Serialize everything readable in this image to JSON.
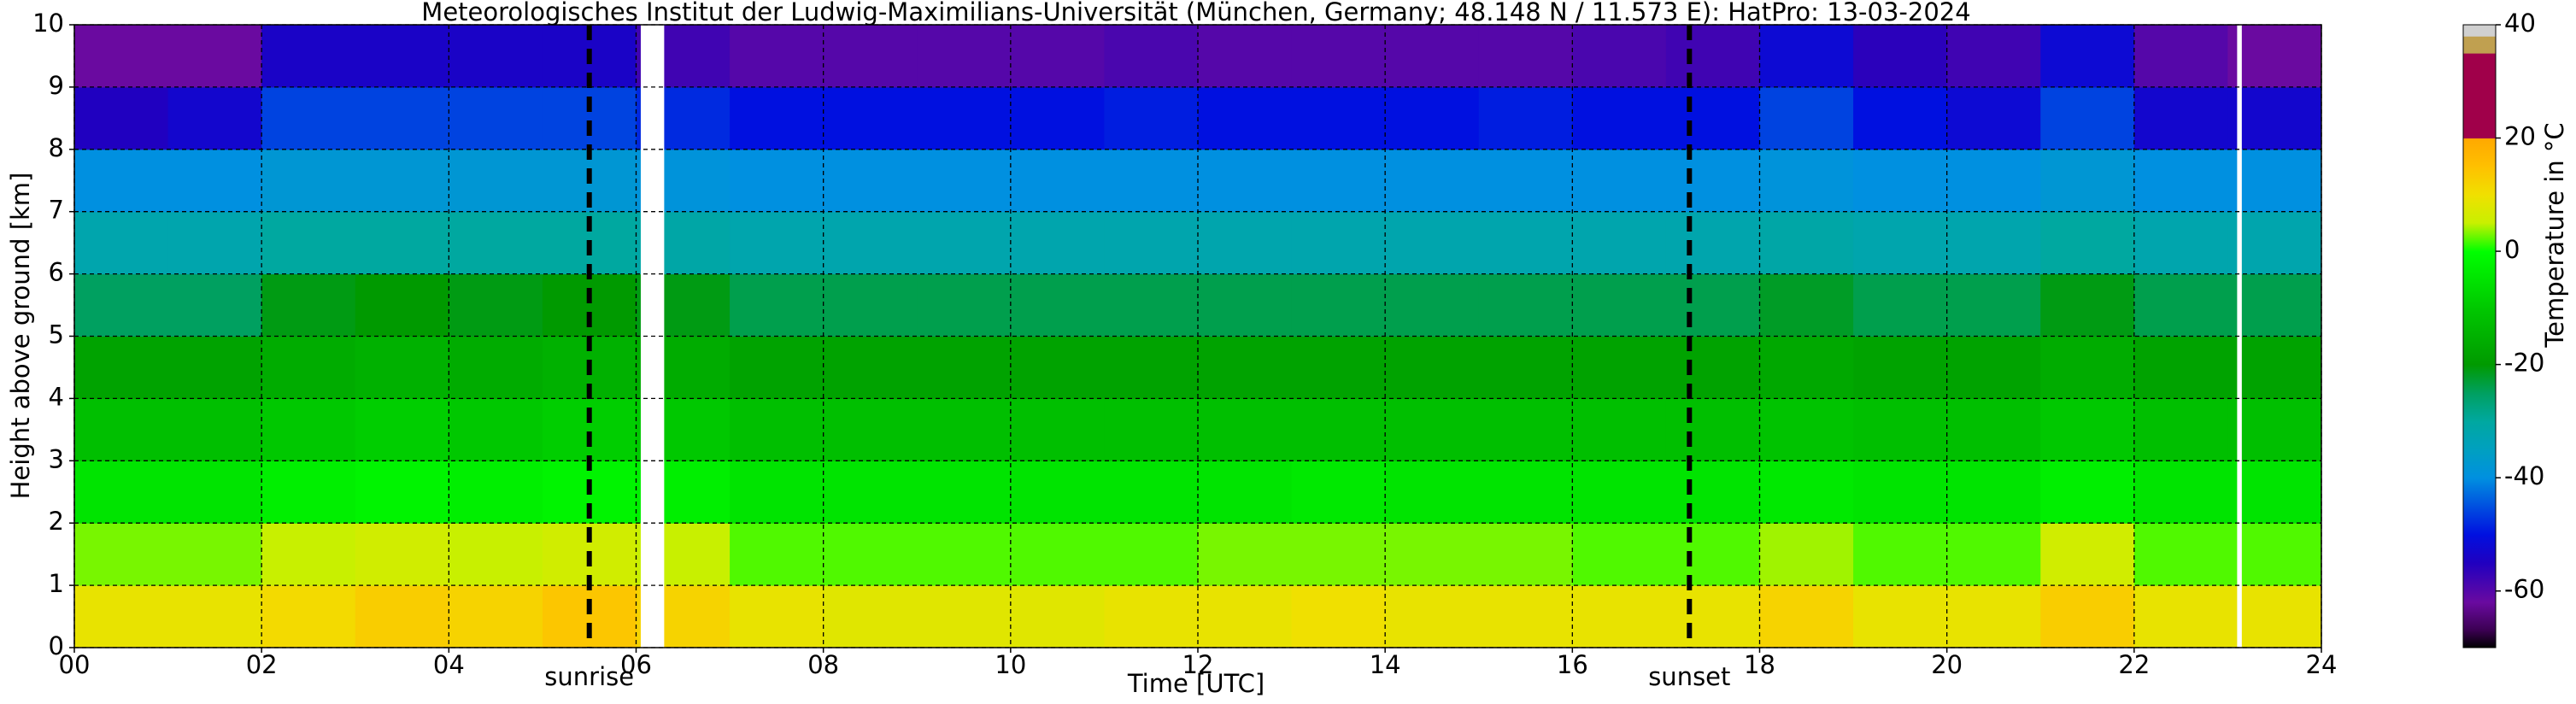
{
  "chart_data": {
    "type": "heatmap",
    "title": "Meteorologisches Institut der Ludwig-Maximilians-Universität (München, Germany; 48.148 N / 11.573 E):    HatPro: 13-03-2024",
    "x_label": "Time [UTC]",
    "y_label": "Height above ground [km]",
    "colorbar_label": "Temperature in °C",
    "x_bins": [
      0,
      1,
      2,
      3,
      4,
      5,
      6,
      7,
      8,
      9,
      10,
      11,
      12,
      13,
      14,
      15,
      16,
      17,
      18,
      19,
      20,
      21,
      22,
      23,
      24
    ],
    "y_bins": [
      0,
      1,
      2,
      3,
      4,
      5,
      6,
      7,
      8,
      9,
      10
    ],
    "values": [
      [
        9,
        9,
        11,
        13,
        12,
        14,
        12,
        9,
        8,
        8,
        8,
        9,
        9,
        10,
        9,
        9,
        9,
        9,
        12,
        9,
        9,
        13,
        9,
        9
      ],
      [
        3,
        3,
        5,
        6,
        5,
        6,
        5,
        2,
        2,
        2,
        2,
        2,
        3,
        3,
        3,
        3,
        2,
        2,
        4,
        2,
        2,
        6,
        2,
        2
      ],
      [
        -5,
        -5,
        -3,
        -2,
        -3,
        -2,
        -3,
        -5,
        -5,
        -5,
        -5,
        -5,
        -5,
        -4,
        -5,
        -5,
        -5,
        -5,
        -4,
        -5,
        -5,
        -3,
        -5,
        -5
      ],
      [
        -12,
        -12,
        -10,
        -9,
        -10,
        -9,
        -10,
        -12,
        -12,
        -12,
        -12,
        -12,
        -12,
        -12,
        -12,
        -12,
        -12,
        -12,
        -11,
        -12,
        -12,
        -10,
        -12,
        -12
      ],
      [
        -18,
        -18,
        -16,
        -15,
        -16,
        -15,
        -16,
        -18,
        -18,
        -18,
        -18,
        -18,
        -18,
        -18,
        -18,
        -18,
        -18,
        -18,
        -17,
        -18,
        -18,
        -16,
        -18,
        -18
      ],
      [
        -25,
        -25,
        -21,
        -20,
        -21,
        -20,
        -21,
        -24,
        -24,
        -24,
        -24,
        -24,
        -24,
        -24,
        -24,
        -24,
        -24,
        -24,
        -22,
        -24,
        -24,
        -21,
        -24,
        -24
      ],
      [
        -32,
        -32,
        -30,
        -30,
        -30,
        -30,
        -31,
        -32,
        -32,
        -32,
        -32,
        -32,
        -32,
        -32,
        -32,
        -32,
        -32,
        -32,
        -31,
        -32,
        -32,
        -30,
        -32,
        -32
      ],
      [
        -40,
        -40,
        -38,
        -38,
        -38,
        -38,
        -39,
        -40,
        -40,
        -40,
        -40,
        -40,
        -40,
        -40,
        -40,
        -40,
        -40,
        -40,
        -39,
        -40,
        -40,
        -38,
        -40,
        -40
      ],
      [
        -55,
        -53,
        -46,
        -46,
        -46,
        -46,
        -48,
        -50,
        -50,
        -50,
        -50,
        -49,
        -50,
        -50,
        -50,
        -49,
        -50,
        -50,
        -46,
        -50,
        -52,
        -46,
        -53,
        -53
      ],
      [
        -62,
        -62,
        -54,
        -54,
        -54,
        -54,
        -58,
        -60,
        -60,
        -60,
        -60,
        -59,
        -60,
        -60,
        -60,
        -60,
        -59,
        -58,
        -52,
        -56,
        -58,
        -52,
        -60,
        -62
      ]
    ],
    "missing": [
      [
        6.05,
        6.3
      ],
      [
        23.1,
        23.15
      ]
    ],
    "xlim": [
      0,
      24
    ],
    "ylim": [
      0,
      10
    ],
    "xticks": [
      {
        "value": 0,
        "label": "00"
      },
      {
        "value": 2,
        "label": "02"
      },
      {
        "value": 4,
        "label": "04"
      },
      {
        "value": 6,
        "label": "06"
      },
      {
        "value": 8,
        "label": "08"
      },
      10,
      12,
      14,
      16,
      18,
      20,
      22,
      24
    ],
    "yticks": [
      0,
      1,
      2,
      3,
      4,
      5,
      6,
      7,
      8,
      9,
      10
    ],
    "grid": true,
    "annotations": [
      {
        "text": "sunrise",
        "x": 5.5
      },
      {
        "text": "sunset",
        "x": 17.25
      }
    ],
    "colorscale": [
      {
        "value": -70,
        "color": "#000000"
      },
      {
        "value": -67,
        "color": "#3a0050"
      },
      {
        "value": -62,
        "color": "#6a0aa0"
      },
      {
        "value": -55,
        "color": "#2000c0"
      },
      {
        "value": -50,
        "color": "#0010e0"
      },
      {
        "value": -45,
        "color": "#0050e0"
      },
      {
        "value": -40,
        "color": "#0090e0"
      },
      {
        "value": -35,
        "color": "#00a0c0"
      },
      {
        "value": -30,
        "color": "#00a8a0"
      },
      {
        "value": -25,
        "color": "#00a060"
      },
      {
        "value": -20,
        "color": "#009a00"
      },
      {
        "value": -10,
        "color": "#00c800"
      },
      {
        "value": 0,
        "color": "#00ff00"
      },
      {
        "value": 5,
        "color": "#c8f000"
      },
      {
        "value": 10,
        "color": "#f0e000"
      },
      {
        "value": 15,
        "color": "#ffc000"
      },
      {
        "value": 20,
        "color": "#ffa800"
      },
      {
        "value": 20,
        "color": "#a0004a"
      },
      {
        "value": 35,
        "color": "#a0004a"
      },
      {
        "value": 35,
        "color": "#c0a050"
      },
      {
        "value": 38,
        "color": "#c0a050"
      },
      {
        "value": 38,
        "color": "#d0d0d0"
      },
      {
        "value": 40,
        "color": "#d0d0d0"
      }
    ],
    "cbar_lim": [
      -70,
      40
    ],
    "cbar_ticks": [
      -60,
      -40,
      -20,
      0,
      20,
      40
    ]
  }
}
